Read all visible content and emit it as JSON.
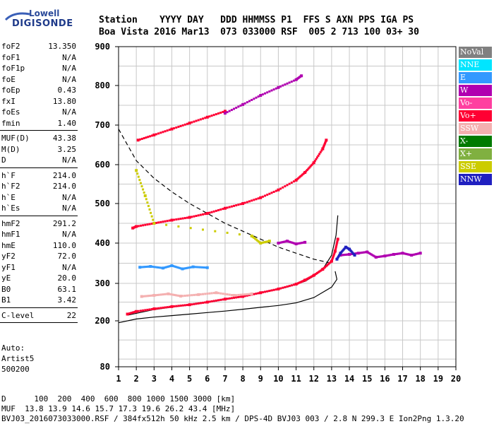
{
  "logo": {
    "top": "Lowell",
    "bottom": "DIGISONDE"
  },
  "header": {
    "line1": "Station    YYYY DAY   DDD HHMMSS P1  FFS S AXN PPS IGA PS",
    "line2": "Boa Vista 2016 Mar13  073 033000 RSF  005 2 713 100 03+ 30"
  },
  "params": [
    {
      "name": "foF2",
      "value": "13.350"
    },
    {
      "name": "foF1",
      "value": "N/A"
    },
    {
      "name": "foF1p",
      "value": "N/A"
    },
    {
      "name": "foE",
      "value": "N/A"
    },
    {
      "name": "foEp",
      "value": "0.43"
    },
    {
      "name": "fxI",
      "value": "13.80"
    },
    {
      "name": "foEs",
      "value": "N/A"
    },
    {
      "name": "fmin",
      "value": "1.40"
    },
    {
      "sep": true
    },
    {
      "name": "MUF(D)",
      "value": "43.38"
    },
    {
      "name": "M(D)",
      "value": "3.25"
    },
    {
      "name": "D",
      "value": "N/A"
    },
    {
      "sep": true
    },
    {
      "name": "h`F",
      "value": "214.0"
    },
    {
      "name": "h`F2",
      "value": "214.0"
    },
    {
      "name": "h`E",
      "value": "N/A"
    },
    {
      "name": "h`Es",
      "value": "N/A"
    },
    {
      "sep": true
    },
    {
      "name": "hmF2",
      "value": "291.2"
    },
    {
      "name": "hmF1",
      "value": "N/A"
    },
    {
      "name": "hmE",
      "value": "110.0"
    },
    {
      "name": "yF2",
      "value": "72.0"
    },
    {
      "name": "yF1",
      "value": "N/A"
    },
    {
      "name": "yE",
      "value": "20.0"
    },
    {
      "name": "B0",
      "value": "63.1"
    },
    {
      "name": "B1",
      "value": "3.42"
    },
    {
      "sep": true
    },
    {
      "name": "C-level",
      "value": "22"
    },
    {
      "sep": true
    }
  ],
  "auto": {
    "line1": "Auto:",
    "line2": "Artist5",
    "line3": "500200"
  },
  "legend": [
    {
      "label": "NoVal",
      "color": "#808080"
    },
    {
      "label": "NNE",
      "color": "#00e5ff"
    },
    {
      "label": "E",
      "color": "#3399ff"
    },
    {
      "label": "W",
      "color": "#b000b0"
    },
    {
      "label": "Vo-",
      "color": "#ff3fa0"
    },
    {
      "label": "Vo+",
      "color": "#ff0033"
    },
    {
      "label": "SSW",
      "color": "#f4b0b0"
    },
    {
      "label": "X-",
      "color": "#007a00"
    },
    {
      "label": "X+",
      "color": "#80b040"
    },
    {
      "label": "SSE",
      "color": "#cccc00"
    },
    {
      "label": "NNW",
      "color": "#2020c0"
    }
  ],
  "footer": {
    "line1": "D      100  200  400  600  800 1000 1500 3000 [km]",
    "line2": "MUF  13.8 13.9 14.6 15.7 17.3 19.6 26.2 43.4 [MHz]",
    "line3": "BVJ03_2016073033000.RSF / 384fx512h 50 kHz 2.5 km / DPS-4D BVJ03 003 / 2.8 N 299.3 E Ion2Png 1.3.20"
  },
  "chart_data": {
    "type": "scatter",
    "title": "",
    "xlabel": "",
    "ylabel": "",
    "xlim": [
      1,
      20
    ],
    "ylim": [
      80,
      900
    ],
    "x_ticks": [
      "1",
      "2",
      "3",
      "4",
      "5",
      "6",
      "7",
      "8",
      "9",
      "10",
      "11",
      "12",
      "13",
      "14",
      "15",
      "16",
      "17",
      "18",
      "19",
      "20"
    ],
    "y_ticks": [
      "80",
      "200",
      "300",
      "400",
      "500",
      "600",
      "700",
      "800",
      "900"
    ],
    "y_tick_values": [
      80,
      200,
      300,
      400,
      500,
      600,
      700,
      800,
      900
    ],
    "grid": true,
    "legend_position": "right",
    "series": [
      {
        "color": "#ff0033",
        "x": [
          1.5,
          2,
          3,
          4,
          5,
          6,
          7,
          8,
          9,
          10,
          11,
          11.5,
          12,
          12.5,
          13,
          13.2,
          13.35
        ],
        "y": [
          218,
          225,
          232,
          238,
          243,
          250,
          258,
          265,
          275,
          285,
          298,
          308,
          320,
          335,
          355,
          380,
          410
        ]
      },
      {
        "color": "#ff0033",
        "x": [
          1.8,
          2,
          3,
          4,
          5,
          6,
          7,
          8,
          9,
          10,
          11,
          11.5,
          12,
          12.5,
          12.7
        ],
        "y": [
          438,
          442,
          450,
          458,
          465,
          475,
          488,
          500,
          515,
          535,
          560,
          580,
          605,
          640,
          662
        ]
      },
      {
        "color": "#ff0033",
        "x": [
          2.1,
          3,
          4,
          5,
          6,
          7
        ],
        "y": [
          662,
          675,
          690,
          705,
          720,
          735
        ]
      },
      {
        "color": "#b000b0",
        "x": [
          7,
          8,
          9,
          10,
          11,
          11.3
        ],
        "y": [
          730,
          752,
          775,
          795,
          815,
          825
        ]
      },
      {
        "color": "#b000b0",
        "x": [
          13.5,
          14,
          14.5,
          15,
          15.5,
          16,
          16.5,
          17,
          17.5,
          18
        ],
        "y": [
          370,
          372,
          375,
          378,
          365,
          368,
          372,
          375,
          370,
          375
        ]
      },
      {
        "color": "#2020c0",
        "x": [
          13.3,
          13.5,
          13.8,
          14,
          14.3
        ],
        "y": [
          360,
          375,
          390,
          385,
          370
        ]
      },
      {
        "color": "#3399ff",
        "x": [
          2.2,
          2.8,
          3.5,
          4,
          4.6,
          5.2,
          6
        ],
        "y": [
          340,
          342,
          338,
          344,
          336,
          341,
          339
        ]
      },
      {
        "color": "#f4b0b0",
        "x": [
          2.3,
          3,
          3.8,
          4.5,
          5.5,
          6.5,
          7.5,
          8.5
        ],
        "y": [
          265,
          268,
          272,
          266,
          270,
          275,
          268,
          272
        ]
      },
      {
        "color": "#b000b0",
        "x": [
          10,
          10.5,
          11,
          11.5
        ],
        "y": [
          400,
          405,
          398,
          402
        ]
      },
      {
        "color": "#cccc00",
        "x": [
          2,
          2.5,
          3,
          8.5,
          9,
          9.5
        ],
        "y": [
          585,
          520,
          450,
          418,
          400,
          405
        ]
      }
    ],
    "curves": [
      {
        "style": "dashed",
        "x": [
          1,
          2,
          3,
          4,
          5,
          6,
          7,
          8,
          9,
          10,
          11,
          12,
          13
        ],
        "y": [
          690,
          610,
          565,
          530,
          500,
          475,
          450,
          430,
          410,
          390,
          375,
          360,
          350
        ]
      },
      {
        "style": "solid",
        "x": [
          1,
          2,
          3,
          4,
          5,
          6,
          7,
          8,
          9,
          10,
          11,
          12,
          13,
          13.3,
          13.2
        ],
        "y": [
          195,
          205,
          210,
          214,
          218,
          222,
          226,
          231,
          236,
          241,
          248,
          262,
          290,
          310,
          330
        ]
      },
      {
        "style": "solid",
        "x": [
          1.5,
          3,
          5,
          7,
          9,
          10.5,
          11.5,
          12,
          12.5,
          13,
          13.25,
          13.35
        ],
        "y": [
          215,
          230,
          243,
          257,
          275,
          290,
          305,
          318,
          335,
          370,
          420,
          470
        ]
      }
    ]
  }
}
